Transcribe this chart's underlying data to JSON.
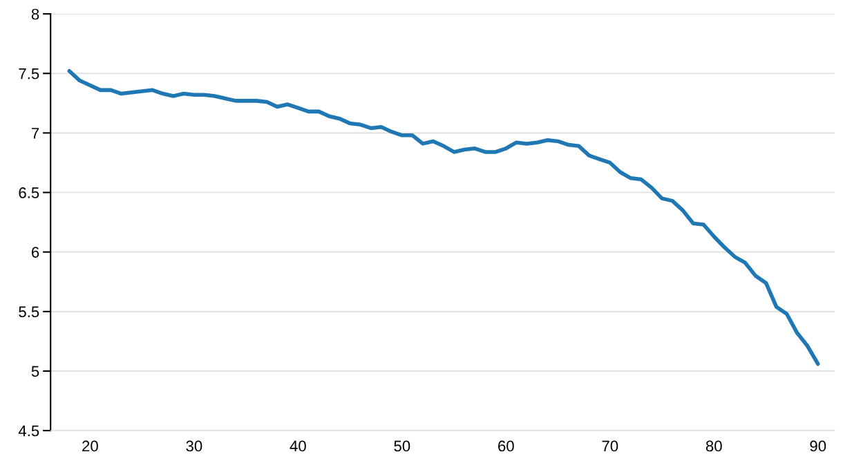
{
  "chart_data": {
    "type": "line",
    "x": [
      18,
      19,
      20,
      21,
      22,
      23,
      24,
      25,
      26,
      27,
      28,
      29,
      30,
      31,
      32,
      33,
      34,
      35,
      36,
      37,
      38,
      39,
      40,
      41,
      42,
      43,
      44,
      45,
      46,
      47,
      48,
      49,
      50,
      51,
      52,
      53,
      54,
      55,
      56,
      57,
      58,
      59,
      60,
      61,
      62,
      63,
      64,
      65,
      66,
      67,
      68,
      69,
      70,
      71,
      72,
      73,
      74,
      75,
      76,
      77,
      78,
      79,
      80,
      81,
      82,
      83,
      84,
      85,
      86,
      87,
      88,
      89,
      90
    ],
    "series": [
      {
        "color": "#1f77b4",
        "values": [
          7.52,
          7.44,
          7.4,
          7.36,
          7.36,
          7.33,
          7.34,
          7.35,
          7.36,
          7.33,
          7.31,
          7.33,
          7.32,
          7.32,
          7.31,
          7.29,
          7.27,
          7.27,
          7.27,
          7.26,
          7.22,
          7.24,
          7.21,
          7.18,
          7.18,
          7.14,
          7.12,
          7.08,
          7.07,
          7.04,
          7.05,
          7.01,
          6.98,
          6.98,
          6.91,
          6.93,
          6.89,
          6.84,
          6.86,
          6.87,
          6.84,
          6.84,
          6.87,
          6.92,
          6.91,
          6.92,
          6.94,
          6.93,
          6.9,
          6.89,
          6.81,
          6.78,
          6.75,
          6.67,
          6.62,
          6.61,
          6.54,
          6.45,
          6.43,
          6.35,
          6.24,
          6.23,
          6.13,
          6.04,
          5.96,
          5.91,
          5.8,
          5.74,
          5.54,
          5.48,
          5.32,
          5.21,
          5.06
        ]
      }
    ],
    "xlim": [
      16.2,
      91.6
    ],
    "xticks": [
      20,
      30,
      40,
      50,
      60,
      70,
      80,
      90
    ],
    "ylim": [
      4.5,
      8
    ],
    "yticks": [
      4.5,
      5,
      5.5,
      6,
      6.5,
      7,
      7.5,
      8
    ],
    "grid": "y",
    "marker": "none",
    "line_style": "solid"
  }
}
